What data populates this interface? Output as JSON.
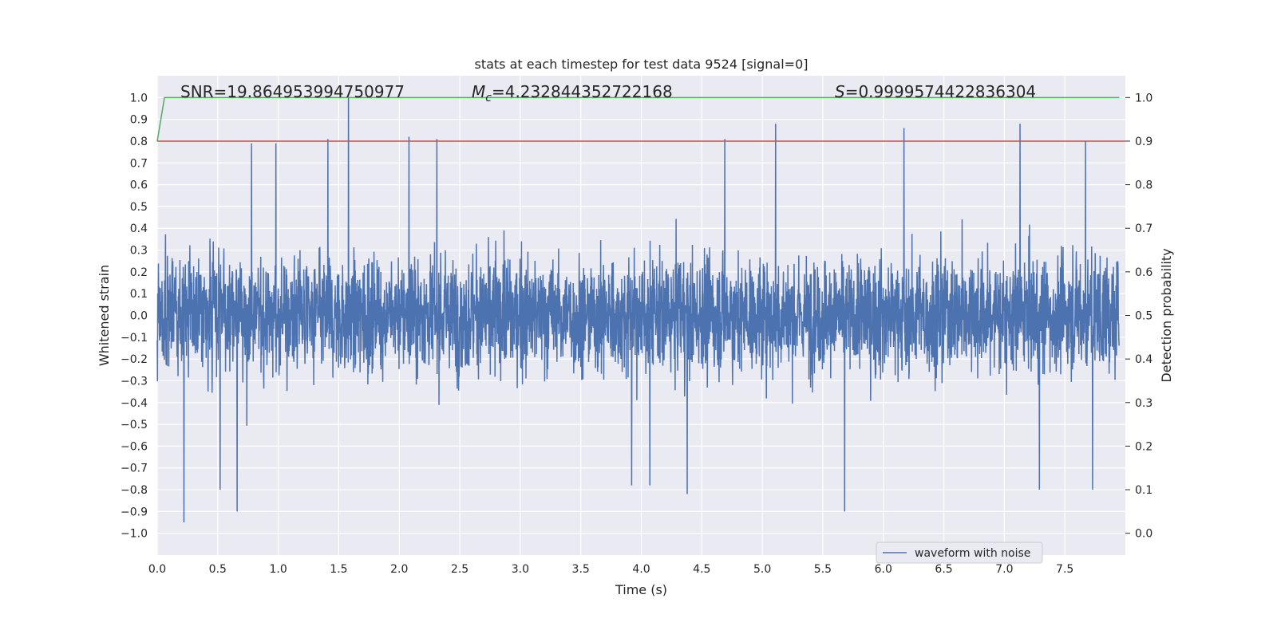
{
  "chart_data": {
    "type": "line",
    "title": "stats at each timestep for test data 9524 [signal=0]",
    "xlabel": "Time (s)",
    "ylabel": "Whitened strain",
    "y2label": "Detection probability",
    "xlim": [
      0.0,
      8.0
    ],
    "ylim": [
      -1.1,
      1.1
    ],
    "y2lim": [
      -0.05,
      1.05
    ],
    "x_ticks": [
      "0.0",
      "0.5",
      "1.0",
      "1.5",
      "2.0",
      "2.5",
      "3.0",
      "3.5",
      "4.0",
      "4.5",
      "5.0",
      "5.5",
      "6.0",
      "6.5",
      "7.0",
      "7.5"
    ],
    "y_ticks": [
      "1.0",
      "0.9",
      "0.8",
      "0.7",
      "0.6",
      "0.5",
      "0.4",
      "0.3",
      "0.2",
      "0.1",
      "0.0",
      "−0.1",
      "−0.2",
      "−0.3",
      "−0.4",
      "−0.5",
      "−0.6",
      "−0.7",
      "−0.8",
      "−0.9",
      "−1.0"
    ],
    "y2_ticks": [
      "1.0",
      "0.9",
      "0.8",
      "0.7",
      "0.6",
      "0.5",
      "0.4",
      "0.3",
      "0.2",
      "0.1",
      "0.0"
    ],
    "grid": true,
    "legend_position": "bottom-right",
    "stats": {
      "snr": "SNR=19.864953994750977",
      "mc_prefix": "M",
      "mc_sub": "c",
      "mc_value": "=4.232844352722168",
      "s_prefix": "S",
      "s_value": "=0.9999574422836304"
    },
    "series": [
      {
        "name": "waveform with noise",
        "color": "#4c72b0",
        "axis": "left",
        "sample_rate_hz": 512,
        "envelope_typical": 0.4,
        "peaks": [
          {
            "x": 1.58,
            "y": 1.0
          },
          {
            "x": 1.41,
            "y": 0.81
          },
          {
            "x": 0.78,
            "y": 0.79
          },
          {
            "x": 0.98,
            "y": 0.79
          },
          {
            "x": 2.08,
            "y": 0.82
          },
          {
            "x": 2.31,
            "y": 0.81
          },
          {
            "x": 4.69,
            "y": 0.81
          },
          {
            "x": 5.11,
            "y": 0.88
          },
          {
            "x": 6.17,
            "y": 0.86
          },
          {
            "x": 7.13,
            "y": 0.88
          },
          {
            "x": 7.67,
            "y": 0.8
          },
          {
            "x": 0.22,
            "y": -0.95
          },
          {
            "x": 0.66,
            "y": -0.9
          },
          {
            "x": 0.52,
            "y": -0.8
          },
          {
            "x": 5.68,
            "y": -0.9
          },
          {
            "x": 4.38,
            "y": -0.82
          },
          {
            "x": 3.92,
            "y": -0.78
          },
          {
            "x": 7.29,
            "y": -0.8
          },
          {
            "x": 7.73,
            "y": -0.8
          },
          {
            "x": 4.07,
            "y": -0.78
          }
        ]
      },
      {
        "name": "",
        "color": "#55a868",
        "axis": "right",
        "x": [
          0.0,
          0.06,
          0.08,
          7.95
        ],
        "y": [
          0.9,
          1.0,
          1.0,
          1.0
        ]
      },
      {
        "name": "",
        "color": "#c44e52",
        "axis": "right",
        "x": [
          0.0,
          8.0
        ],
        "y": [
          0.9,
          0.9
        ]
      }
    ]
  }
}
